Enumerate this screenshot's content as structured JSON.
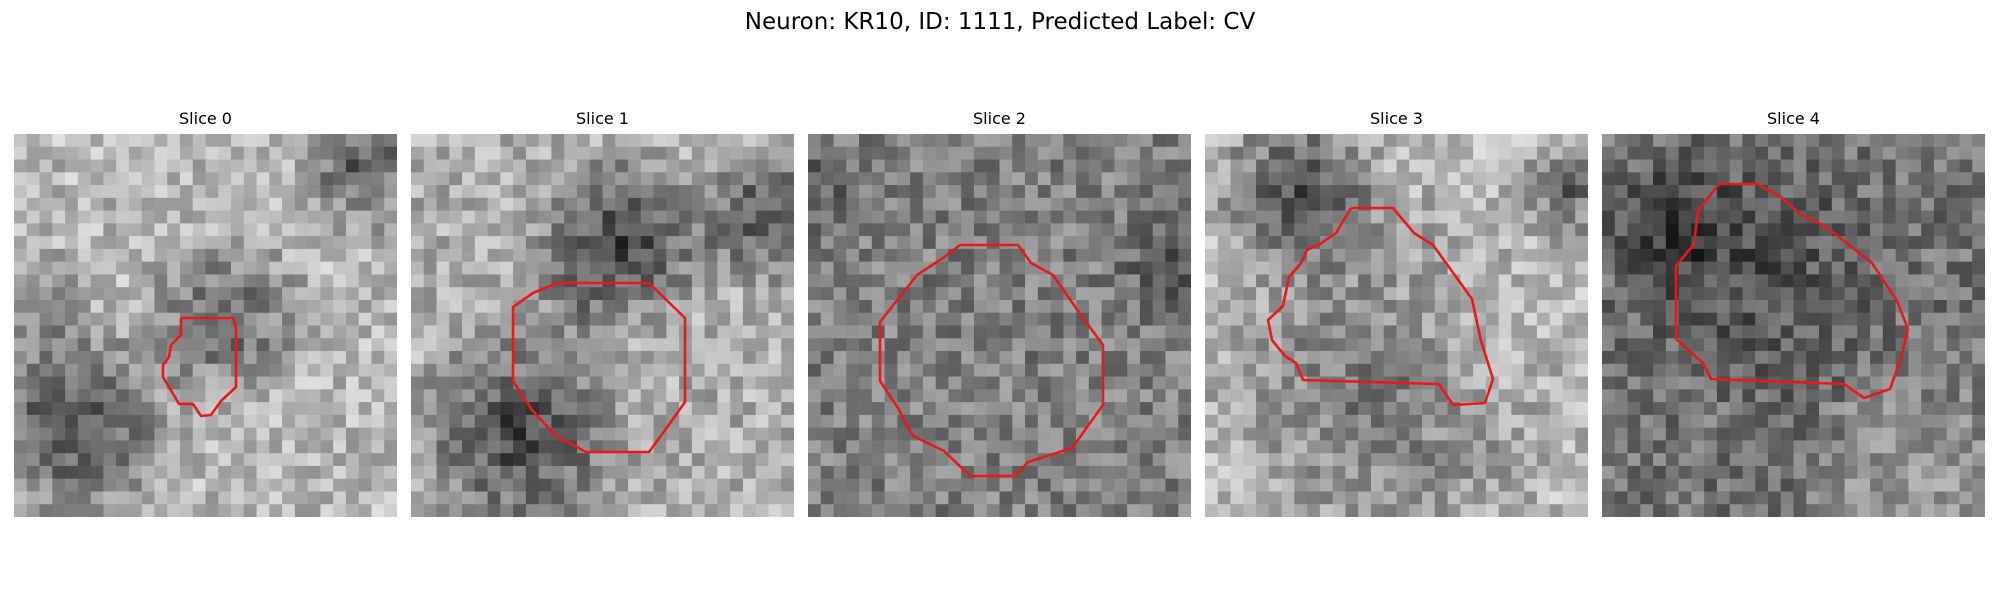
{
  "figure": {
    "title": "Neuron: KR10, ID: 1111, Predicted Label: CV",
    "outline_color": "#e8191d",
    "colormap": "grayscale",
    "grid_size": 30
  },
  "panels": [
    {
      "title": "Slice 0",
      "feature": "small soma outline on noisy grayscale patch"
    },
    {
      "title": "Slice 1",
      "feature": "octagonal soma outline"
    },
    {
      "title": "Slice 2",
      "feature": "large octagonal soma outline"
    },
    {
      "title": "Slice 3",
      "feature": "irregular soma outline"
    },
    {
      "title": "Slice 4",
      "feature": "irregular soma outline"
    }
  ]
}
